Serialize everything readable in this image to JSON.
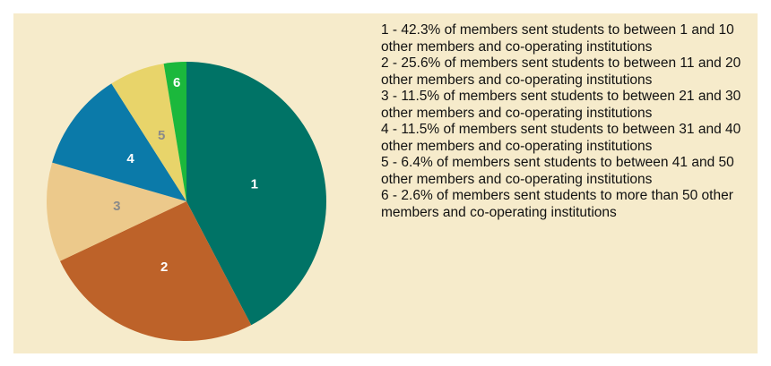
{
  "chart_data": {
    "type": "pie",
    "categories": [
      "1",
      "2",
      "3",
      "4",
      "5",
      "6"
    ],
    "values": [
      42.3,
      25.6,
      11.5,
      11.5,
      6.4,
      2.6
    ],
    "colors": [
      "#007366",
      "#bd6229",
      "#ecc98b",
      "#0b7aa9",
      "#e8d46a",
      "#1bb83c"
    ],
    "label_colors": [
      "#ffffff",
      "#ffffff",
      "#8a8a8a",
      "#ffffff",
      "#8a8a8a",
      "#ffffff"
    ],
    "legend": [
      "1 - 42.3% of members sent students to between 1 and 10 other members and co-operating institutions",
      "2 - 25.6% of members sent students to between 11 and 20 other members and co-operating institutions",
      "3 - 11.5% of members sent students to between 21 and 30 other members and co-operating institutions",
      "4 - 11.5% of members sent students to between 31 and 40 other members and co-operating institutions",
      "5 - 6.4% of members sent students to between 41 and 50 other members and co-operating institutions",
      "6 - 2.6% of members sent students to more than 50 other members and co-operating institutions"
    ]
  }
}
